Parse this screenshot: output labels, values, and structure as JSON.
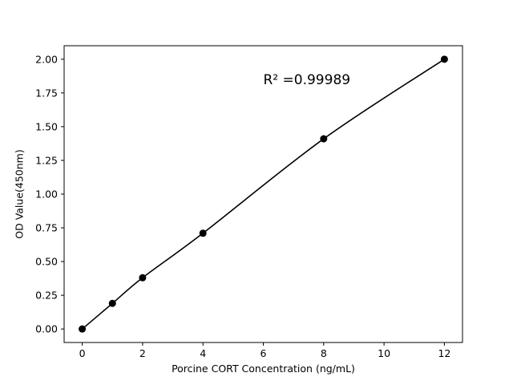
{
  "chart_data": {
    "type": "line",
    "title": "",
    "xlabel": "Porcine CORT Concentration (ng/mL)",
    "ylabel": "OD Value(450nm)",
    "x": [
      0,
      1,
      2,
      4,
      8,
      12
    ],
    "y": [
      0.0,
      0.19,
      0.38,
      0.71,
      1.41,
      2.0
    ],
    "x_ticks": [
      0,
      2,
      4,
      6,
      8,
      10,
      12
    ],
    "y_ticks": [
      0,
      0.25,
      0.5,
      0.75,
      1.0,
      1.25,
      1.5,
      1.75,
      2.0
    ],
    "xlim": [
      -0.6,
      12.6
    ],
    "ylim": [
      -0.1,
      2.1
    ],
    "grid": false,
    "legend_position": "none",
    "annotation": "R² =0.99989",
    "annotation_pos": {
      "x": 6.0,
      "y": 1.83
    },
    "line_color": "#000000",
    "marker_color": "#000000",
    "background_color": "#ffffff"
  }
}
